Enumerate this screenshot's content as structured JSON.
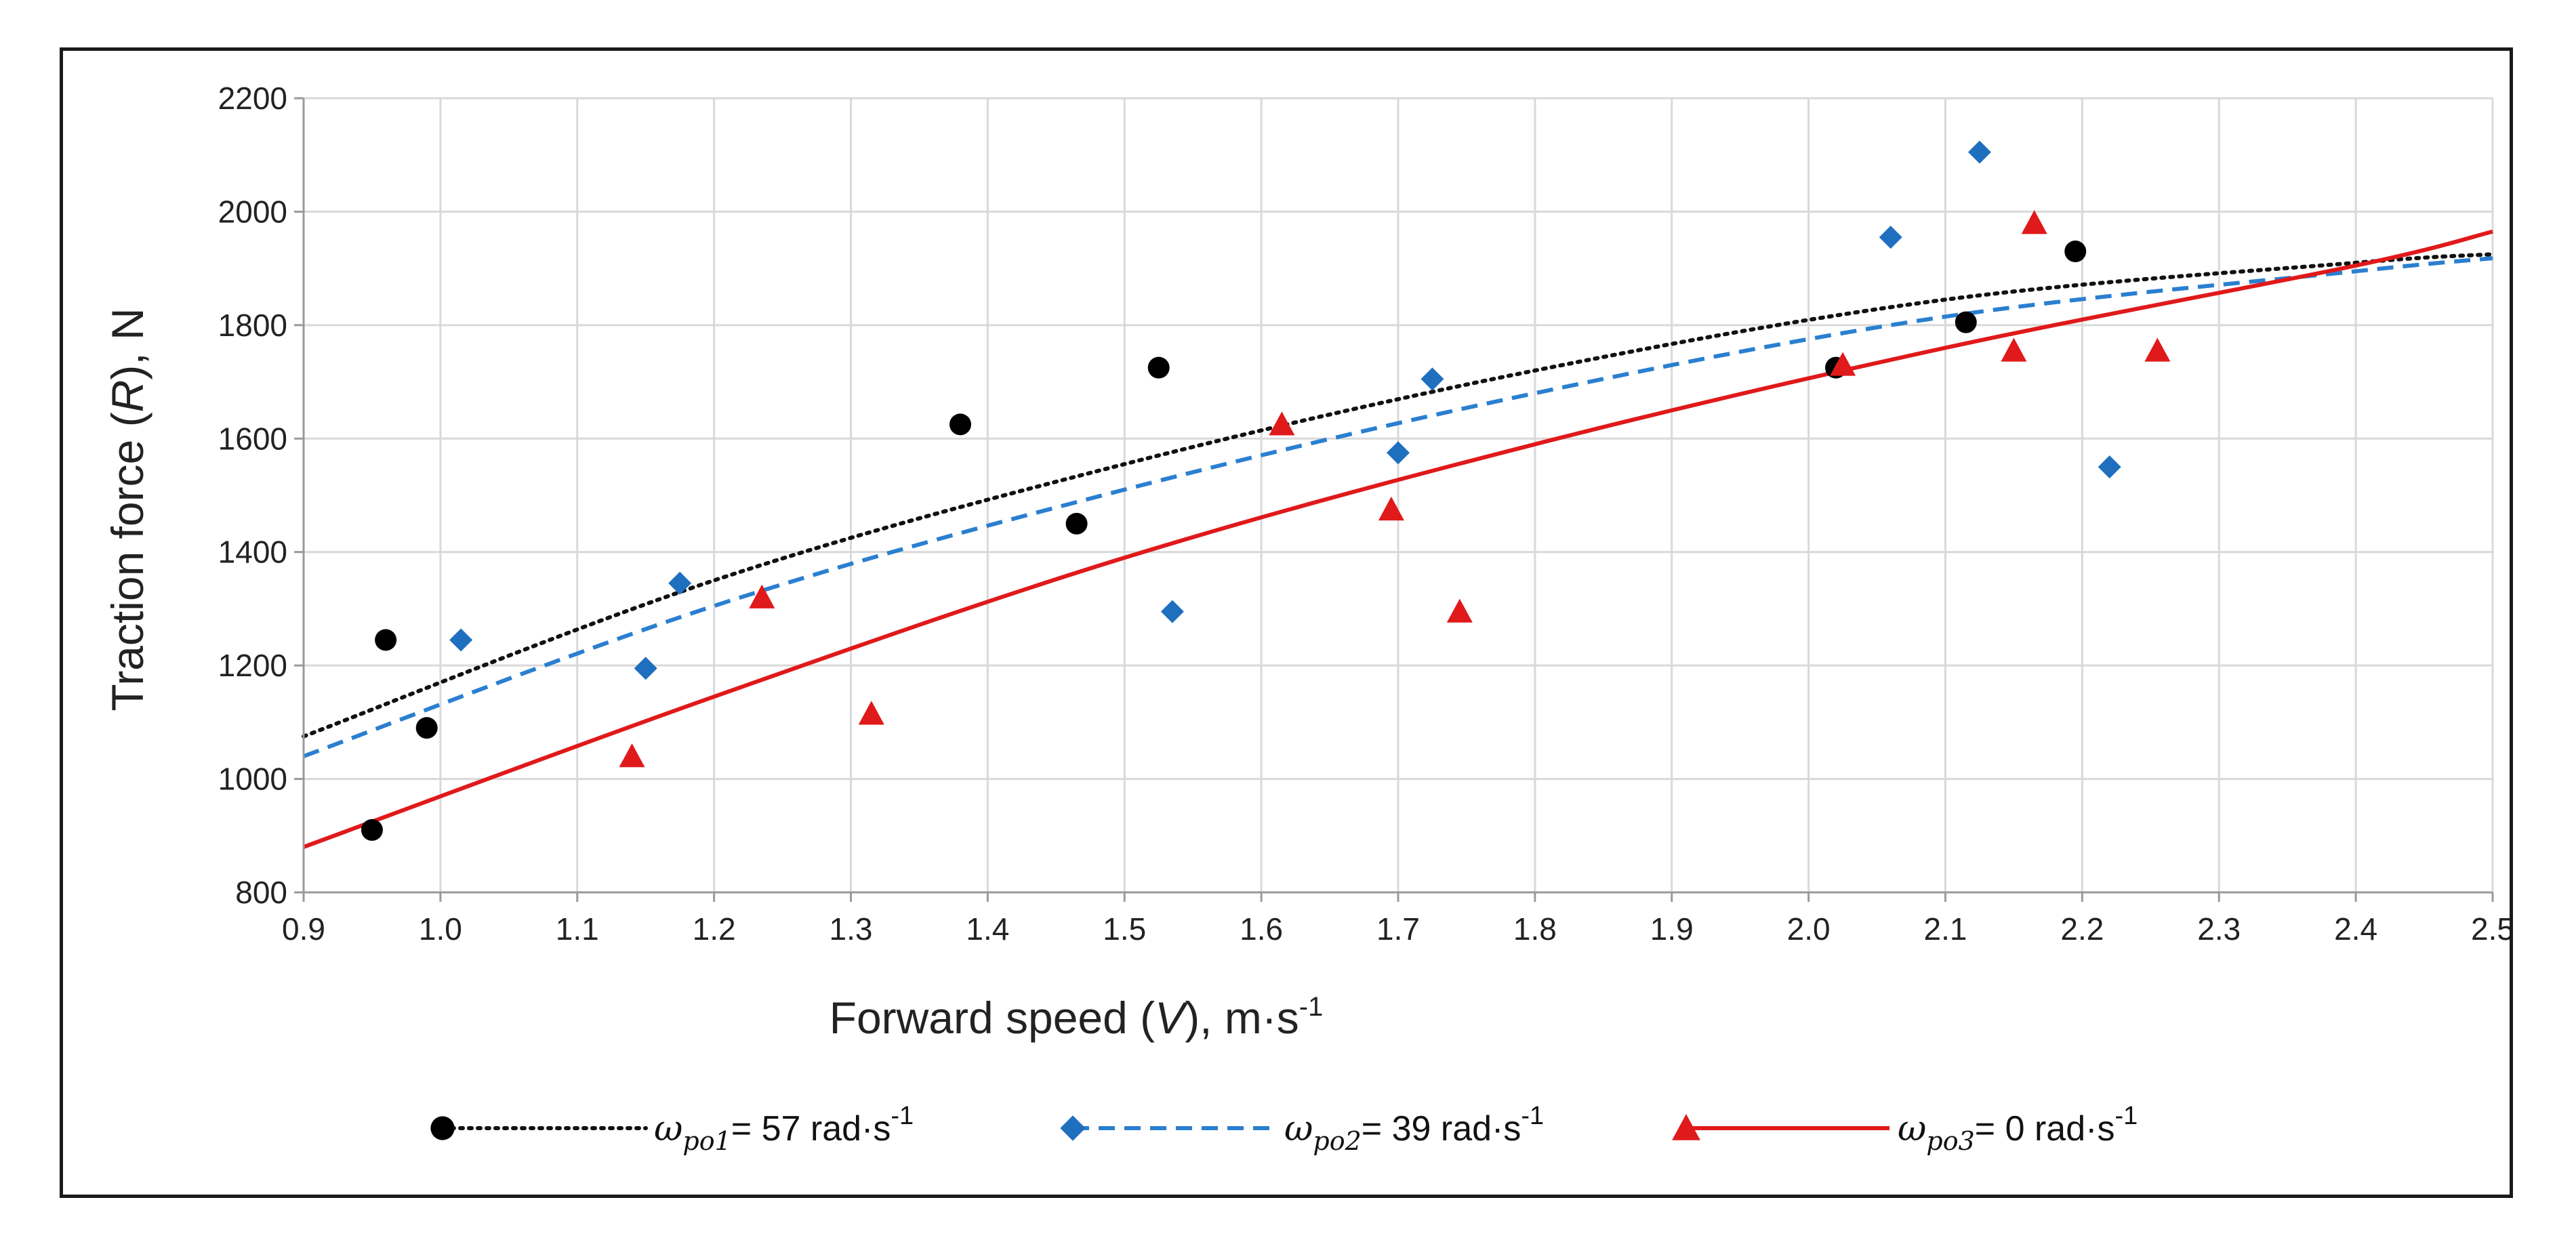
{
  "chart_data": {
    "type": "scatter",
    "title": "",
    "xlabel": "Forward speed (V), m·s-1",
    "xlabel_parts": {
      "prefix": "Forward speed (",
      "var": "V",
      "suffix": "), m·s",
      "sup": "-1"
    },
    "ylabel": "Traction force (R), N",
    "ylabel_parts": {
      "prefix": "Traction force (",
      "var": "R",
      "suffix": "), N"
    },
    "xlim": [
      0.9,
      2.5
    ],
    "ylim": [
      800,
      2200
    ],
    "xticks": [
      "0.9",
      "1.0",
      "1.1",
      "1.2",
      "1.3",
      "1.4",
      "1.5",
      "1.6",
      "1.7",
      "1.8",
      "1.9",
      "2.0",
      "2.1",
      "2.2",
      "2.3",
      "2.4",
      "2.5"
    ],
    "yticks": [
      "800",
      "1000",
      "1200",
      "1400",
      "1600",
      "1800",
      "2000",
      "2200"
    ],
    "grid": true,
    "legend_position": "bottom",
    "series": [
      {
        "name": "ωpo1= 57 rad·s-1",
        "legend": {
          "sym": "ω",
          "sub": "po1",
          "text": "= 57 rad·s",
          "sup": "-1"
        },
        "marker": "circle",
        "color": "#000000",
        "trend_color": "#111111",
        "trend_style": "dotted",
        "x": [
          0.95,
          0.96,
          0.99,
          1.38,
          1.465,
          1.525,
          2.02,
          2.115,
          2.195
        ],
        "y": [
          910,
          1245,
          1090,
          1625,
          1450,
          1725,
          1725,
          1805,
          1930
        ],
        "trend": [
          [
            0.9,
            1075
          ],
          [
            1.2,
            1350
          ],
          [
            1.5,
            1555
          ],
          [
            1.8,
            1720
          ],
          [
            2.1,
            1845
          ],
          [
            2.4,
            1910
          ],
          [
            2.5,
            1925
          ]
        ]
      },
      {
        "name": "ωpo2= 39 rad·s-1",
        "legend": {
          "sym": "ω",
          "sub": "po2",
          "text": "= 39 rad·s",
          "sup": "-1"
        },
        "marker": "diamond",
        "color": "#1f6fbf",
        "trend_color": "#2a7fd0",
        "trend_style": "dashed",
        "x": [
          1.015,
          1.15,
          1.175,
          1.535,
          1.7,
          1.725,
          2.06,
          2.125,
          2.22
        ],
        "y": [
          1245,
          1195,
          1345,
          1295,
          1575,
          1705,
          1955,
          2105,
          1550
        ],
        "trend": [
          [
            0.9,
            1040
          ],
          [
            1.2,
            1305
          ],
          [
            1.5,
            1510
          ],
          [
            1.8,
            1680
          ],
          [
            2.1,
            1815
          ],
          [
            2.4,
            1895
          ],
          [
            2.5,
            1918
          ]
        ]
      },
      {
        "name": "ωpo3= 0 rad·s-1",
        "legend": {
          "sym": "ω",
          "sub": "po3",
          "text": "= 0 rad·s",
          "sup": "-1"
        },
        "marker": "triangle",
        "color": "#e0191a",
        "trend_color": "#e0191a",
        "trend_style": "solid",
        "x": [
          1.14,
          1.235,
          1.315,
          1.615,
          1.695,
          1.745,
          2.025,
          2.15,
          2.165,
          2.255
        ],
        "y": [
          1040,
          1320,
          1115,
          1625,
          1475,
          1295,
          1730,
          1755,
          1980,
          1755
        ],
        "trend": [
          [
            0.9,
            880
          ],
          [
            1.2,
            1145
          ],
          [
            1.5,
            1390
          ],
          [
            1.8,
            1590
          ],
          [
            2.1,
            1760
          ],
          [
            2.4,
            1905
          ],
          [
            2.5,
            1965
          ]
        ]
      }
    ]
  }
}
